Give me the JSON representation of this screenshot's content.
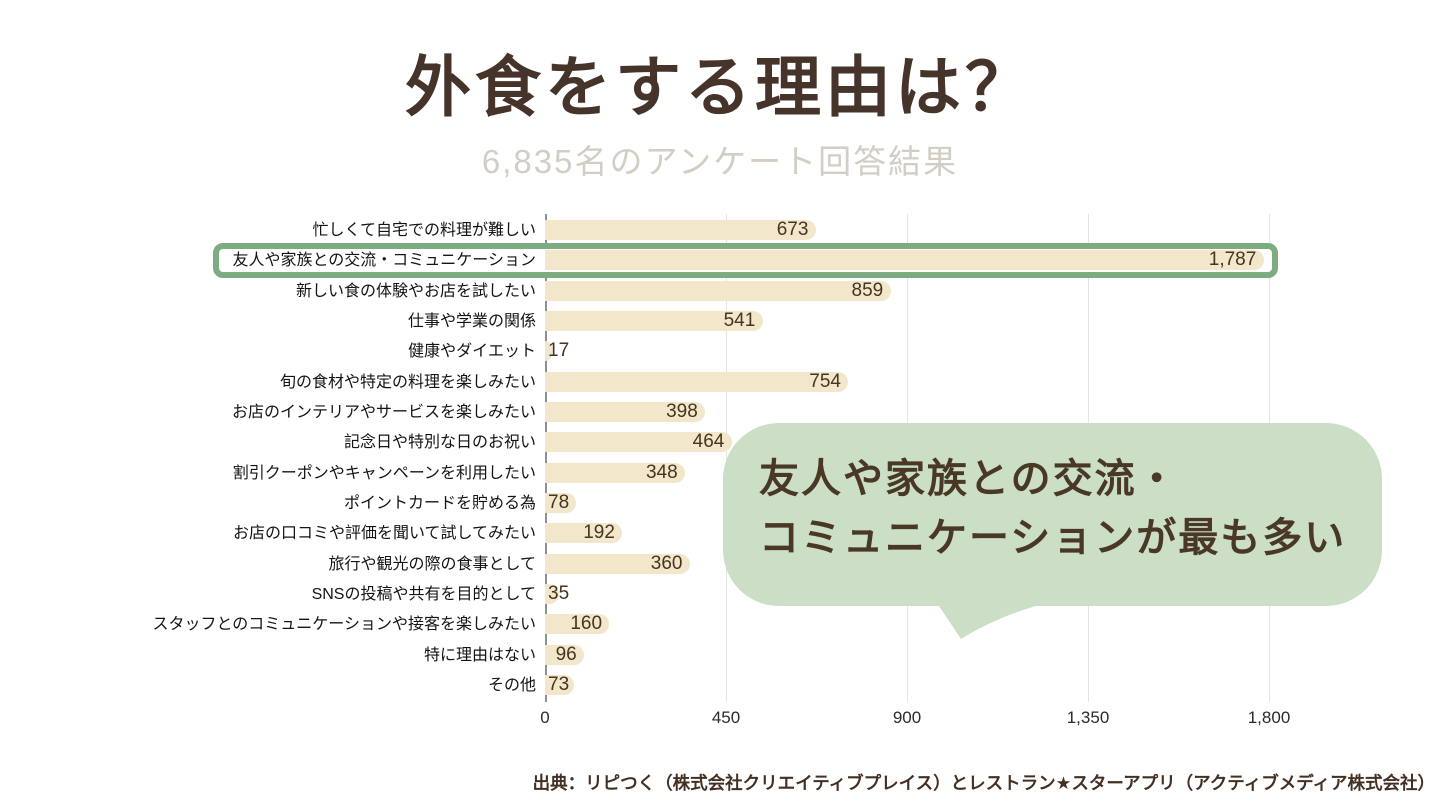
{
  "title": "外食をする理由は？",
  "subtitle": "6,835名のアンケート回答結果",
  "source": "出典：リピつく（株式会社クリエイティブプレイス）とレストラン★スターアプリ（アクティブメディア株式会社）",
  "callout": {
    "line1": "友人や家族との交流・",
    "line2": "コミュニケーションが最も多い"
  },
  "colors": {
    "title_text": "#46342a",
    "subtitle_text": "#d3cec5",
    "bar_fill": "#f2e7cb",
    "value_text": "#45341f",
    "highlight_border": "#7cac80",
    "bubble_fill": "#cbdec6",
    "bubble_text": "#4a3826",
    "gridline": "#e4e4e4",
    "axis_line": "#8f8f8f"
  },
  "chart_data": {
    "type": "bar",
    "orientation": "horizontal",
    "title": "外食をする理由は？",
    "subtitle": "6,835名のアンケート回答結果",
    "categories": [
      "忙しくて自宅での料理が難しい",
      "友人や家族との交流・コミュニケーション",
      "新しい食の体験やお店を試したい",
      "仕事や学業の関係",
      "健康やダイエット",
      "旬の食材や特定の料理を楽しみたい",
      "お店のインテリアやサービスを楽しみたい",
      "記念日や特別な日のお祝い",
      "割引クーポンやキャンペーンを利用したい",
      "ポイントカードを貯める為",
      "お店の口コミや評価を聞いて試してみたい",
      "旅行や観光の際の食事として",
      "SNSの投稿や共有を目的として",
      "スタッフとのコミュニケーションや接客を楽しみたい",
      "特に理由はない",
      "その他"
    ],
    "values": [
      673,
      1787,
      859,
      541,
      17,
      754,
      398,
      464,
      348,
      78,
      192,
      360,
      35,
      160,
      96,
      73
    ],
    "value_labels": [
      "673",
      "1,787",
      "859",
      "541",
      "17",
      "754",
      "398",
      "464",
      "348",
      "78",
      "192",
      "360",
      "35",
      "160",
      "96",
      "73"
    ],
    "highlight_index": 1,
    "x_ticks": [
      "0",
      "450",
      "900",
      "1,350",
      "1,800"
    ],
    "x_tick_values": [
      0,
      450,
      900,
      1350,
      1800
    ],
    "xlim": [
      0,
      1800
    ],
    "grid": "vertical-only",
    "legend": "none"
  }
}
